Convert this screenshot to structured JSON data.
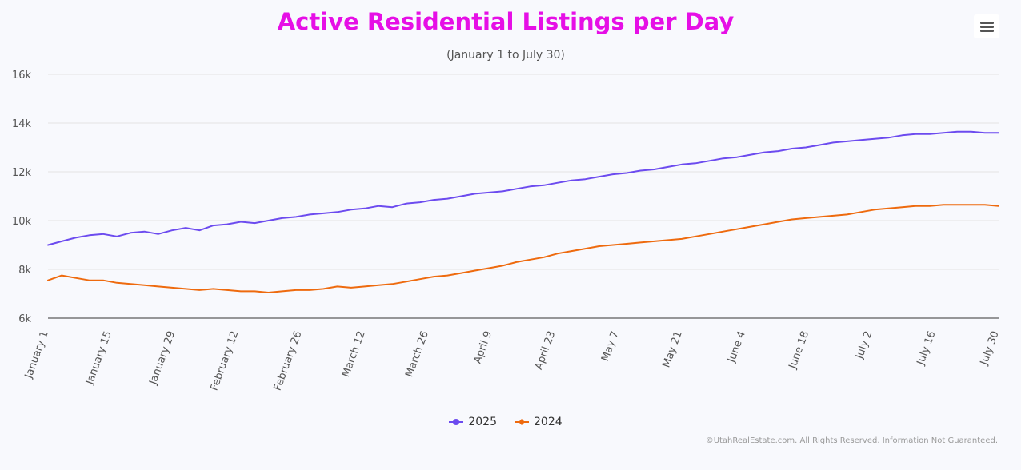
{
  "chart_data": {
    "type": "line",
    "title": "Active Residential Listings per Day",
    "subtitle": "(January 1 to July 30)",
    "xlabel": "",
    "ylabel": "",
    "ylim": [
      6000,
      16000
    ],
    "y_ticks": [
      "6k",
      "8k",
      "10k",
      "12k",
      "14k",
      "16k"
    ],
    "y_tick_values": [
      6000,
      8000,
      10000,
      12000,
      14000,
      16000
    ],
    "x_tick_labels": [
      "January 1",
      "January 15",
      "January 29",
      "February 12",
      "February 26",
      "March 12",
      "March 26",
      "April 9",
      "April 23",
      "May 7",
      "May 21",
      "June 4",
      "June 18",
      "July 2",
      "July 16",
      "July 30"
    ],
    "grid": true,
    "legend_position": "bottom",
    "series": [
      {
        "name": "2025",
        "color": "#6c4bef",
        "values": [
          9000,
          9150,
          9300,
          9400,
          9450,
          9350,
          9500,
          9550,
          9450,
          9600,
          9700,
          9600,
          9800,
          9850,
          9950,
          9900,
          10000,
          10100,
          10150,
          10250,
          10300,
          10350,
          10450,
          10500,
          10600,
          10550,
          10700,
          10750,
          10850,
          10900,
          11000,
          11100,
          11150,
          11200,
          11300,
          11400,
          11450,
          11550,
          11650,
          11700,
          11800,
          11900,
          11950,
          12050,
          12100,
          12200,
          12300,
          12350,
          12450,
          12550,
          12600,
          12700,
          12800,
          12850,
          12950,
          13000,
          13100,
          13200,
          13250,
          13300,
          13350,
          13400,
          13500,
          13550,
          13550,
          13600,
          13650,
          13650,
          13600,
          13600
        ]
      },
      {
        "name": "2024",
        "color": "#ee6a0e",
        "values": [
          7550,
          7750,
          7650,
          7550,
          7550,
          7450,
          7400,
          7350,
          7300,
          7250,
          7200,
          7150,
          7200,
          7150,
          7100,
          7100,
          7050,
          7100,
          7150,
          7150,
          7200,
          7300,
          7250,
          7300,
          7350,
          7400,
          7500,
          7600,
          7700,
          7750,
          7850,
          7950,
          8050,
          8150,
          8300,
          8400,
          8500,
          8650,
          8750,
          8850,
          8950,
          9000,
          9050,
          9100,
          9150,
          9200,
          9250,
          9350,
          9450,
          9550,
          9650,
          9750,
          9850,
          9950,
          10050,
          10100,
          10150,
          10200,
          10250,
          10350,
          10450,
          10500,
          10550,
          10600,
          10600,
          10650,
          10650,
          10650,
          10650,
          10600
        ]
      }
    ]
  },
  "menu": {
    "icon": "hamburger-menu-icon"
  },
  "credits": "©UtahRealEstate.com. All Rights Reserved. Information Not Guaranteed."
}
